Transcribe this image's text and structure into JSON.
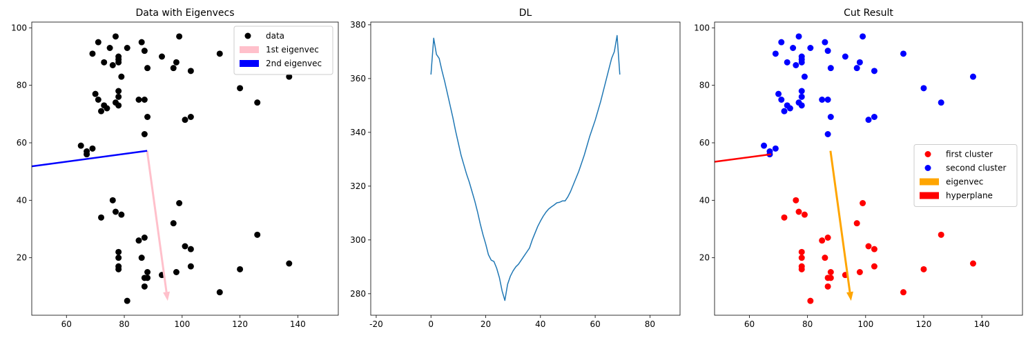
{
  "chart_data": [
    {
      "type": "scatter",
      "title": "Data with Eigenvecs",
      "xlim": [
        48,
        154
      ],
      "ylim": [
        0,
        102
      ],
      "xticks": [
        60,
        80,
        100,
        120,
        140
      ],
      "yticks": [
        20,
        40,
        60,
        80,
        100
      ],
      "legend_position": "top-right",
      "series": [
        {
          "name": "data",
          "kind": "scatter",
          "color": "#000000",
          "points": [
            [
              77,
              97
            ],
            [
              99,
              97
            ],
            [
              71,
              95
            ],
            [
              86,
              95
            ],
            [
              81,
              93
            ],
            [
              75,
              93
            ],
            [
              87,
              92
            ],
            [
              69,
              91
            ],
            [
              113,
              91
            ],
            [
              78,
              90
            ],
            [
              93,
              90
            ],
            [
              78,
              89
            ],
            [
              73,
              88
            ],
            [
              78,
              88
            ],
            [
              98,
              88
            ],
            [
              76,
              87
            ],
            [
              88,
              86
            ],
            [
              97,
              86
            ],
            [
              103,
              85
            ],
            [
              137,
              83
            ],
            [
              79,
              83
            ],
            [
              120,
              79
            ],
            [
              70,
              77
            ],
            [
              78,
              78
            ],
            [
              71,
              75
            ],
            [
              78,
              76
            ],
            [
              85,
              75
            ],
            [
              87,
              75
            ],
            [
              126,
              74
            ],
            [
              77,
              74
            ],
            [
              78,
              73
            ],
            [
              73,
              73
            ],
            [
              74,
              72
            ],
            [
              72,
              71
            ],
            [
              88,
              69
            ],
            [
              103,
              69
            ],
            [
              101,
              68
            ],
            [
              87,
              63
            ],
            [
              65,
              59
            ],
            [
              67,
              57
            ],
            [
              69,
              58
            ],
            [
              67,
              56
            ],
            [
              76,
              40
            ],
            [
              99,
              39
            ],
            [
              77,
              36
            ],
            [
              79,
              35
            ],
            [
              72,
              34
            ],
            [
              97,
              32
            ],
            [
              126,
              28
            ],
            [
              87,
              27
            ],
            [
              85,
              26
            ],
            [
              101,
              24
            ],
            [
              103,
              23
            ],
            [
              78,
              22
            ],
            [
              78,
              20
            ],
            [
              86,
              20
            ],
            [
              137,
              18
            ],
            [
              78,
              17
            ],
            [
              103,
              17
            ],
            [
              78,
              16
            ],
            [
              120,
              16
            ],
            [
              88,
              15
            ],
            [
              98,
              15
            ],
            [
              93,
              14
            ],
            [
              88,
              13
            ],
            [
              87,
              13
            ],
            [
              87,
              10
            ],
            [
              113,
              8
            ],
            [
              81,
              5
            ]
          ]
        },
        {
          "name": "1st eigenvec",
          "kind": "arrow",
          "color": "#ffc0cb",
          "start": [
            87.9,
            57.2
          ],
          "end": [
            95,
            5
          ]
        },
        {
          "name": "2nd eigenvec",
          "kind": "line",
          "color": "#0000ff",
          "start": [
            87.9,
            57.2
          ],
          "end": [
            48,
            51.8
          ]
        }
      ]
    },
    {
      "type": "line",
      "title": "DL",
      "xlim": [
        -22,
        91
      ],
      "ylim": [
        272,
        381
      ],
      "xticks": [
        -20,
        0,
        20,
        40,
        60,
        80
      ],
      "yticks": [
        280,
        300,
        320,
        340,
        360,
        380
      ],
      "series": [
        {
          "color": "#1f77b4",
          "x": [
            0,
            1,
            2,
            3,
            4,
            5,
            6,
            7,
            8,
            9,
            10,
            11,
            12,
            13,
            14,
            15,
            16,
            17,
            18,
            19,
            20,
            21,
            22,
            23,
            24,
            25,
            26,
            27,
            28,
            29,
            30,
            31,
            32,
            33,
            34,
            35,
            36,
            37,
            38,
            39,
            40,
            41,
            42,
            43,
            44,
            45,
            46,
            47,
            48,
            49,
            50,
            51,
            52,
            53,
            54,
            55,
            56,
            57,
            58,
            59,
            60,
            61,
            62,
            63,
            64,
            65,
            66,
            67,
            68,
            69
          ],
          "values": [
            361.5,
            375,
            369,
            367.5,
            363,
            359,
            354.5,
            350,
            345.5,
            340.5,
            336,
            331.5,
            328,
            324.5,
            321.5,
            318,
            314.5,
            310.5,
            306,
            302,
            298.5,
            294.5,
            292.5,
            292,
            289.5,
            286,
            281,
            277.5,
            283.5,
            286.5,
            288.5,
            290,
            291,
            292.5,
            294,
            295.5,
            297,
            300,
            302.5,
            305,
            307,
            308.8,
            310.3,
            311.5,
            312.3,
            313,
            313.8,
            314,
            314.5,
            314.5,
            316,
            318,
            320.5,
            323,
            325.5,
            328.5,
            331.5,
            335,
            338.5,
            341.5,
            344.5,
            348,
            351.5,
            355.5,
            359.5,
            363.5,
            367.5,
            370,
            376,
            361.5
          ]
        }
      ]
    },
    {
      "type": "scatter",
      "title": "Cut Result",
      "xlim": [
        48,
        154
      ],
      "ylim": [
        0,
        102
      ],
      "xticks": [
        60,
        80,
        100,
        120,
        140
      ],
      "yticks": [
        20,
        40,
        60,
        80,
        100
      ],
      "legend_position": "center-right",
      "series": [
        {
          "name": "first cluster",
          "kind": "scatter",
          "color": "#ff0000",
          "points": [
            [
              76,
              40
            ],
            [
              99,
              39
            ],
            [
              77,
              36
            ],
            [
              79,
              35
            ],
            [
              72,
              34
            ],
            [
              97,
              32
            ],
            [
              126,
              28
            ],
            [
              87,
              27
            ],
            [
              85,
              26
            ],
            [
              101,
              24
            ],
            [
              103,
              23
            ],
            [
              78,
              22
            ],
            [
              78,
              20
            ],
            [
              86,
              20
            ],
            [
              137,
              18
            ],
            [
              78,
              17
            ],
            [
              103,
              17
            ],
            [
              78,
              16
            ],
            [
              120,
              16
            ],
            [
              88,
              15
            ],
            [
              98,
              15
            ],
            [
              93,
              14
            ],
            [
              88,
              13
            ],
            [
              87,
              13
            ],
            [
              87,
              10
            ],
            [
              113,
              8
            ],
            [
              81,
              5
            ]
          ]
        },
        {
          "name": "second cluster",
          "kind": "scatter",
          "color": "#0000ff",
          "points": [
            [
              77,
              97
            ],
            [
              99,
              97
            ],
            [
              71,
              95
            ],
            [
              86,
              95
            ],
            [
              81,
              93
            ],
            [
              75,
              93
            ],
            [
              87,
              92
            ],
            [
              69,
              91
            ],
            [
              113,
              91
            ],
            [
              78,
              90
            ],
            [
              93,
              90
            ],
            [
              78,
              89
            ],
            [
              73,
              88
            ],
            [
              78,
              88
            ],
            [
              98,
              88
            ],
            [
              76,
              87
            ],
            [
              88,
              86
            ],
            [
              97,
              86
            ],
            [
              103,
              85
            ],
            [
              137,
              83
            ],
            [
              79,
              83
            ],
            [
              120,
              79
            ],
            [
              70,
              77
            ],
            [
              78,
              78
            ],
            [
              71,
              75
            ],
            [
              78,
              76
            ],
            [
              85,
              75
            ],
            [
              87,
              75
            ],
            [
              126,
              74
            ],
            [
              77,
              74
            ],
            [
              78,
              73
            ],
            [
              73,
              73
            ],
            [
              74,
              72
            ],
            [
              72,
              71
            ],
            [
              88,
              69
            ],
            [
              103,
              69
            ],
            [
              101,
              68
            ],
            [
              87,
              63
            ],
            [
              65,
              59
            ],
            [
              67,
              57
            ],
            [
              69,
              58
            ],
            [
              67,
              56
            ]
          ]
        },
        {
          "name": "eigenvec",
          "kind": "arrow",
          "color": "#ffa500",
          "start": [
            87.9,
            57.2
          ],
          "end": [
            95,
            5
          ]
        },
        {
          "name": "hyperplane",
          "kind": "line",
          "color": "#ff0000",
          "start": [
            67.5,
            56
          ],
          "end": [
            48,
            53.4
          ]
        }
      ]
    }
  ]
}
